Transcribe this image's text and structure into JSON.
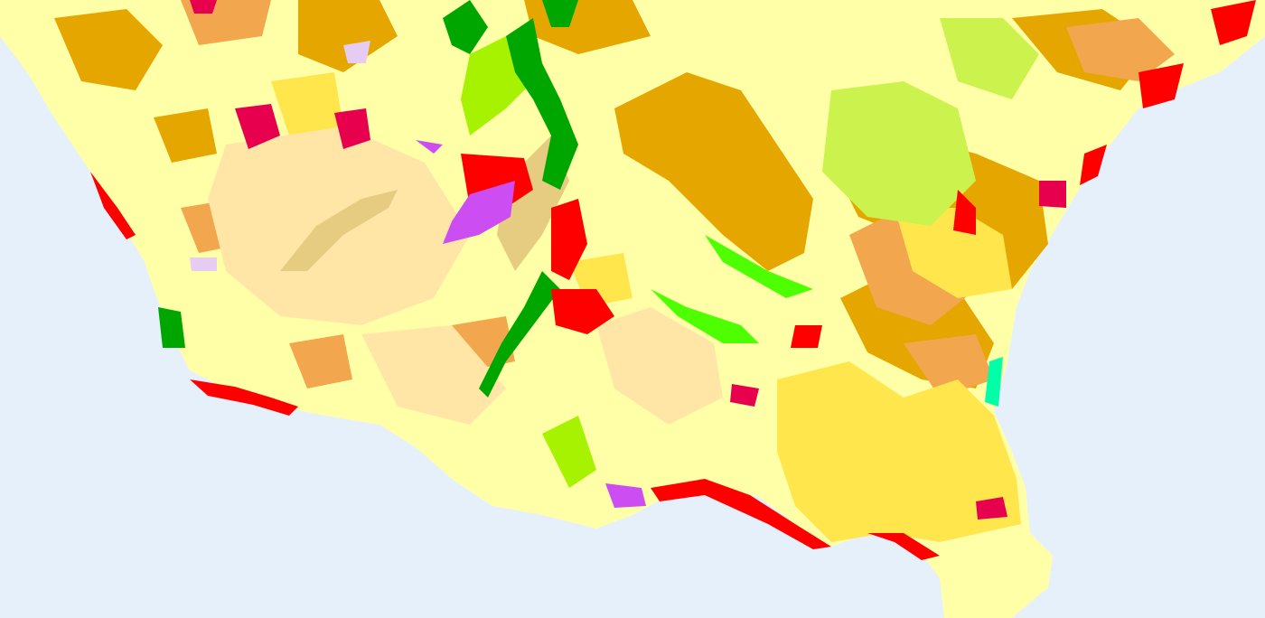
{
  "map": {
    "type": "land-cover",
    "colors": {
      "sea": "#e6f0fb",
      "land_base": "#ffffa8",
      "arable_orange": "#e6a600",
      "complex_cultivation": "#f2a64d",
      "olive_yellow": "#ffe64d",
      "peach": "#ffe6a6",
      "tan": "#e6cc80",
      "urban_red": "#ff0000",
      "urban_crimson": "#e6004d",
      "industrial_purple": "#cc4df2",
      "pale_purple": "#e6ccf2",
      "forest_green": "#00a600",
      "grass_green": "#a6f200",
      "light_green": "#ccf24d",
      "bright_green": "#4dff00",
      "wetland_cyan": "#00ffa6"
    }
  }
}
